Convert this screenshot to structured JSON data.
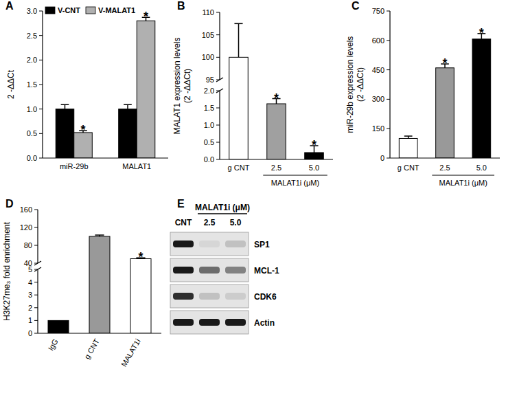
{
  "chart_data": [
    {
      "type": "bar",
      "title": "A",
      "ylabel": "2 -ΔΔCt",
      "categories": [
        "miR-29b",
        "MALAT1"
      ],
      "series": [
        {
          "name": "V-CNT",
          "color": "#000000",
          "values": [
            1.0,
            1.0
          ],
          "errors": [
            0.09,
            0.09
          ],
          "significance": [
            null,
            null
          ]
        },
        {
          "name": "V-MALAT1",
          "color": "#b0b0b0",
          "values": [
            0.52,
            2.8
          ],
          "errors": [
            0.04,
            0.07
          ],
          "significance": [
            "*",
            "*"
          ]
        }
      ],
      "ylim": [
        0,
        3
      ],
      "yticks": [
        {
          "value": 0,
          "label": "0.0"
        },
        {
          "value": 0.5,
          "label": "0.5"
        },
        {
          "value": 1,
          "label": "1.0"
        },
        {
          "value": 1.5,
          "label": "1.5"
        },
        {
          "value": 2,
          "label": "2.0"
        },
        {
          "value": 2.5,
          "label": "2.5"
        },
        {
          "value": 3,
          "label": "3.0"
        }
      ],
      "legend": "upper left"
    },
    {
      "type": "bar",
      "title": "B",
      "ylabel": [
        "MALAT1 expression levels",
        "(2 -ΔΔCt)"
      ],
      "categories": [
        "g CNT",
        "2.5",
        "5.0"
      ],
      "group_label": "MALAT1i (μM)",
      "values": [
        100,
        1.62,
        0.2
      ],
      "errors": [
        7.5,
        0.15,
        0.2
      ],
      "colors": [
        "#ffffff",
        "#a0a0a0",
        "#000000"
      ],
      "significance": [
        null,
        "*",
        "*"
      ],
      "ylim": [
        0,
        110
      ],
      "ybreak": [
        2,
        95
      ],
      "yticks": [
        {
          "value": 0,
          "label": "0.0"
        },
        {
          "value": 0.5,
          "label": "0.5"
        },
        {
          "value": 1,
          "label": "1.0"
        },
        {
          "value": 1.5,
          "label": "1.5"
        },
        {
          "value": 2,
          "label": "2.0"
        },
        95,
        100,
        105,
        110
      ]
    },
    {
      "type": "bar",
      "title": "C",
      "ylabel": [
        "miR-29b expression levels",
        "(2 -ΔΔCt)"
      ],
      "categories": [
        "g CNT",
        "2.5",
        "5.0"
      ],
      "group_label": "MALAT1i (μM)",
      "values": [
        100,
        460,
        607
      ],
      "errors": [
        12,
        20,
        28
      ],
      "colors": [
        "#ffffff",
        "#999999",
        "#000000"
      ],
      "significance": [
        null,
        "*",
        "*"
      ],
      "ylim": [
        0,
        750
      ],
      "yticks": [
        0,
        150,
        300,
        450,
        600,
        750
      ]
    },
    {
      "type": "bar",
      "title": "D",
      "ylabel": "H3K27me₃ fold enrichment",
      "categories": [
        "IgG",
        "g CNT",
        "MALAT1i"
      ],
      "values": [
        1,
        100,
        50
      ],
      "errors": [
        0,
        3,
        2
      ],
      "colors": [
        "#000000",
        "#999999",
        "#ffffff"
      ],
      "significance": [
        null,
        null,
        "*"
      ],
      "ylim": [
        0,
        160
      ],
      "ybreak": [
        5,
        40
      ],
      "yticks": [
        0,
        1,
        2,
        3,
        4,
        5,
        40,
        80,
        120,
        160
      ]
    },
    {
      "type": "blot",
      "title": "E",
      "group_label": "MALAT1i (μM)",
      "lanes": [
        "CNT",
        "2.5",
        "5.0"
      ],
      "series": [
        {
          "name": "SP1",
          "values": [
            1.0,
            0.1,
            0.2
          ]
        },
        {
          "name": "MCL-1",
          "values": [
            1.0,
            0.6,
            0.5
          ]
        },
        {
          "name": "CDK6",
          "values": [
            0.9,
            0.2,
            0.15
          ]
        },
        {
          "name": "Actin",
          "values": [
            1.0,
            1.0,
            1.0
          ]
        }
      ]
    }
  ]
}
